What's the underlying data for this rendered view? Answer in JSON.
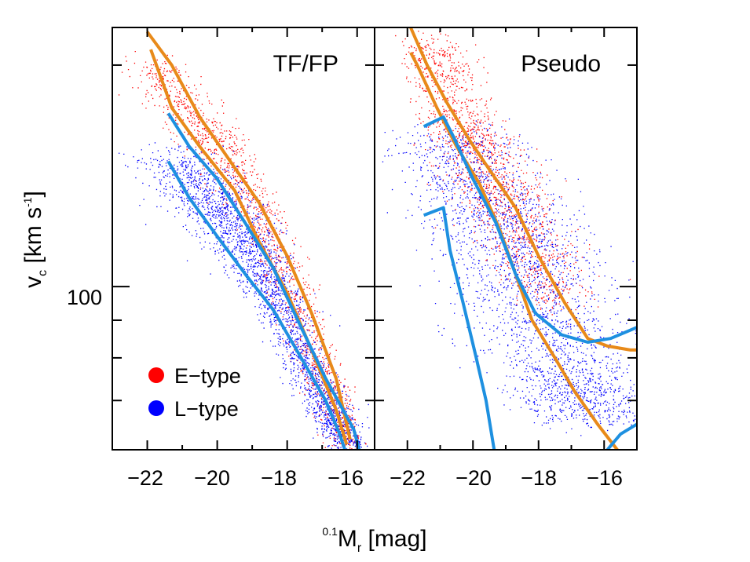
{
  "chart_data": [
    {
      "type": "scatter",
      "panel_label": "TF/FP",
      "xlabel_prefix": "0.1",
      "xlabel_main": "M",
      "xlabel_sub": "r",
      "xlabel_unit": " [mag]",
      "ylabel_main": "v",
      "ylabel_sub": "c",
      "ylabel_unit": " [km s",
      "ylabel_exp": "-1",
      "ylabel_close": "]",
      "xlim": [
        -23.0,
        -15.5
      ],
      "ylim": [
        60,
        225
      ],
      "yscale": "log",
      "x_ticks": [
        -22,
        -20,
        -18,
        -16
      ],
      "x_tick_labels": [
        "−22",
        "−20",
        "−18",
        "−16"
      ],
      "y_major_ticks": [
        100
      ],
      "y_tick_labels": [
        "100"
      ],
      "y_minor_ticks": [
        70,
        80,
        90,
        200
      ],
      "legend": {
        "placement": "bottom-left",
        "entries": [
          {
            "label": "E−type",
            "color": "#ff0000"
          },
          {
            "label": "L−type",
            "color": "#0000ff"
          }
        ]
      },
      "series": [
        {
          "name": "E−type",
          "kind": "points",
          "color": "#ff0000",
          "ridge": [
            [
              -21.9,
              200
            ],
            [
              -20.0,
              155
            ],
            [
              -18.5,
              118
            ],
            [
              -17.2,
              80
            ],
            [
              -16.2,
              60
            ]
          ],
          "spread": [
            0.45,
            0.4,
            0.35,
            0.3,
            0.25
          ]
        },
        {
          "name": "L−type",
          "kind": "points",
          "color": "#0000ff",
          "ridge": [
            [
              -21.3,
              150
            ],
            [
              -20.0,
              128
            ],
            [
              -19.0,
              110
            ],
            [
              -18.0,
              90
            ],
            [
              -17.0,
              70
            ],
            [
              -16.1,
              59
            ]
          ],
          "spread": [
            0.7,
            0.6,
            0.45,
            0.35,
            0.3,
            0.28
          ]
        },
        {
          "kind": "line",
          "color": "#e88a1a",
          "x": [
            -22.0,
            -21.3,
            -20.5,
            -19.5,
            -18.8,
            -18.0,
            -17.3,
            -16.6,
            -16.2
          ],
          "y": [
            222,
            200,
            170,
            145,
            130,
            110,
            92,
            75,
            62
          ]
        },
        {
          "kind": "line",
          "color": "#e88a1a",
          "x": [
            -21.9,
            -21.3,
            -20.5,
            -19.5,
            -18.8,
            -18.0,
            -17.3,
            -16.6,
            -16.3
          ],
          "y": [
            210,
            175,
            155,
            135,
            115,
            98,
            82,
            68,
            61
          ]
        },
        {
          "kind": "line",
          "color": "#1e90e0",
          "x": [
            -21.4,
            -20.8,
            -20.0,
            -19.2,
            -18.4,
            -17.6,
            -16.9,
            -16.1,
            -15.9
          ],
          "y": [
            172,
            155,
            140,
            122,
            106,
            88,
            75,
            64,
            59
          ]
        },
        {
          "kind": "line",
          "color": "#1e90e0",
          "x": [
            -21.4,
            -20.8,
            -20.0,
            -19.2,
            -18.4,
            -17.6,
            -16.9,
            -16.5,
            -16.3
          ],
          "y": [
            148,
            132,
            117,
            104,
            93,
            80,
            70,
            63,
            59
          ]
        }
      ]
    },
    {
      "type": "scatter",
      "panel_label": "Pseudo",
      "xlim": [
        -23.0,
        -15.0
      ],
      "ylim": [
        60,
        225
      ],
      "yscale": "log",
      "x_ticks": [
        -22,
        -20,
        -18,
        -16
      ],
      "x_tick_labels": [
        "−22",
        "−20",
        "−18",
        "−16"
      ],
      "series": [
        {
          "name": "E−type",
          "kind": "points",
          "color": "#ff0000",
          "ridge": [
            [
              -21.3,
              215
            ],
            [
              -20.5,
              170
            ],
            [
              -19.6,
              145
            ],
            [
              -18.6,
              120
            ],
            [
              -17.5,
              95
            ]
          ],
          "spread": [
            0.5,
            0.6,
            0.7,
            0.7,
            0.6
          ]
        },
        {
          "name": "L−type",
          "kind": "points",
          "color": "#0000ff",
          "ridge": [
            [
              -20.5,
              160
            ],
            [
              -19.5,
              130
            ],
            [
              -18.6,
              110
            ],
            [
              -17.8,
              90
            ],
            [
              -17.0,
              75
            ],
            [
              -16.3,
              66
            ]
          ],
          "spread": [
            1.0,
            1.1,
            1.2,
            1.2,
            1.1,
            1.0
          ]
        },
        {
          "kind": "line",
          "color": "#e88a1a",
          "x": [
            -21.9,
            -21.4,
            -20.8,
            -20.1,
            -19.4,
            -18.7,
            -18.0,
            -17.2,
            -16.5,
            -15.9,
            -15.2,
            -15.0
          ],
          "y": [
            225,
            200,
            178,
            158,
            142,
            128,
            110,
            95,
            85,
            83,
            82,
            82
          ]
        },
        {
          "kind": "line",
          "color": "#e88a1a",
          "x": [
            -21.9,
            -21.7,
            -21.1,
            -20.5,
            -19.8,
            -19.2,
            -18.7,
            -18.2,
            -17.5,
            -16.9,
            -16.2,
            -15.6,
            -15.2
          ],
          "y": [
            208,
            200,
            175,
            155,
            138,
            120,
            104,
            90,
            80,
            72,
            65,
            60,
            58
          ]
        },
        {
          "kind": "line",
          "color": "#1e90e0",
          "x": [
            -21.5,
            -20.9,
            -20.6,
            -20.0,
            -19.3,
            -18.7,
            -18.1,
            -17.3,
            -16.5,
            -15.8,
            -15.0
          ],
          "y": [
            165,
            170,
            160,
            140,
            122,
            104,
            92,
            86,
            84,
            85,
            88
          ]
        },
        {
          "kind": "line",
          "color": "#1e90e0",
          "x": [
            -21.5,
            -20.9,
            -20.7,
            -20.3,
            -19.9,
            -19.6,
            -19.3
          ],
          "y": [
            125,
            128,
            112,
            95,
            80,
            70,
            58
          ]
        },
        {
          "kind": "line",
          "color": "#1e90e0",
          "x": [
            -15.9,
            -15.5,
            -15.0
          ],
          "y": [
            60,
            63,
            65
          ]
        }
      ]
    }
  ]
}
